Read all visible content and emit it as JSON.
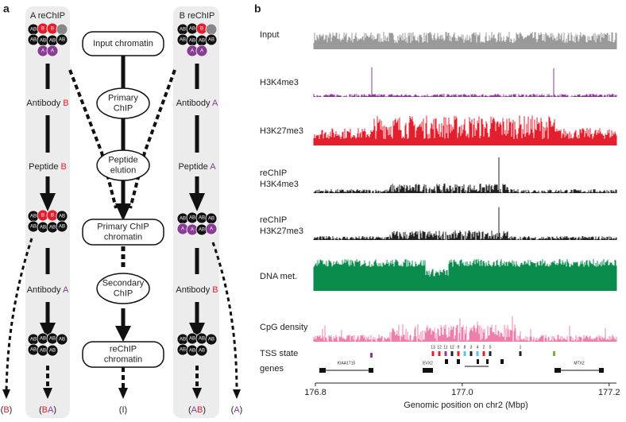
{
  "panel_a": {
    "label": "a",
    "columns": [
      {
        "title": "A reChIP"
      },
      {
        "title": "B reChIP"
      }
    ],
    "center_nodes": [
      {
        "lines": [
          "Input chromatin"
        ]
      },
      {
        "lines": [
          "Primary",
          "ChIP"
        ]
      },
      {
        "lines": [
          "Peptide",
          "elution"
        ]
      },
      {
        "lines": [
          "Primary ChIP",
          "chromatin"
        ]
      },
      {
        "lines": [
          "Secondary",
          "ChIP"
        ]
      },
      {
        "lines": [
          "reChIP",
          "chromatin"
        ]
      }
    ],
    "left_steps": [
      {
        "parts": [
          {
            "text": "Antibody "
          },
          {
            "text": "B",
            "color": "#e31e2d"
          }
        ]
      },
      {
        "parts": [
          {
            "text": "Peptide "
          },
          {
            "text": "B",
            "color": "#e31e2d"
          }
        ]
      },
      {
        "parts": [
          {
            "text": "Antibody "
          },
          {
            "text": "A",
            "color": "#8a3b96"
          }
        ]
      }
    ],
    "right_steps": [
      {
        "parts": [
          {
            "text": "Antibody "
          },
          {
            "text": "A",
            "color": "#8a3b96"
          }
        ]
      },
      {
        "parts": [
          {
            "text": "Peptide "
          },
          {
            "text": "A",
            "color": "#8a3b96"
          }
        ]
      },
      {
        "parts": [
          {
            "text": "Antibody "
          },
          {
            "text": "B",
            "color": "#e31e2d"
          }
        ]
      }
    ],
    "clusters": [
      {
        "beads": [
          {
            "label": "AB"
          },
          {
            "label": "B",
            "color": "#e31e2d"
          },
          {
            "label": "B",
            "color": "#e31e2d"
          },
          {
            "color": "#888888"
          },
          {
            "label": "AB"
          },
          {
            "label": "AB"
          },
          {
            "label": "AB"
          },
          {
            "label": "AB"
          },
          {
            "label": "A",
            "color": "#8a3b96"
          },
          {
            "label": "A",
            "color": "#8a3b96"
          }
        ]
      },
      {
        "beads": [
          {
            "label": "AB"
          },
          {
            "label": "B",
            "color": "#e31e2d"
          },
          {
            "label": "B",
            "color": "#e31e2d"
          },
          {
            "label": "AB"
          },
          {
            "label": "AB"
          },
          {
            "label": "AB"
          },
          {
            "label": "AB"
          },
          {
            "label": "AB"
          }
        ]
      },
      {
        "beads": [
          {
            "label": "AB"
          },
          {
            "label": "AB"
          },
          {
            "label": "AB"
          },
          {
            "label": "AB"
          },
          {
            "label": "AB"
          },
          {
            "label": "AB"
          },
          {
            "label": "AB"
          }
        ]
      },
      {
        "beads": [
          {
            "label": "AB"
          },
          {
            "label": "AB"
          },
          {
            "label": "B",
            "color": "#e31e2d"
          },
          {
            "color": "#888888"
          },
          {
            "label": "AB"
          },
          {
            "label": "AB"
          },
          {
            "label": "AB"
          },
          {
            "label": "AB"
          },
          {
            "label": "A",
            "color": "#8a3b96"
          },
          {
            "label": "A",
            "color": "#8a3b96"
          }
        ]
      },
      {
        "beads": [
          {
            "label": "AB"
          },
          {
            "label": "AB"
          },
          {
            "label": "AB"
          },
          {
            "label": "AB"
          },
          {
            "label": "A",
            "color": "#8a3b96"
          },
          {
            "label": "A",
            "color": "#8a3b96"
          },
          {
            "label": "AB"
          },
          {
            "label": "A",
            "color": "#8a3b96"
          }
        ]
      },
      {
        "beads": [
          {
            "label": "AB"
          },
          {
            "label": "AB"
          },
          {
            "label": "AB"
          },
          {
            "label": "AB"
          },
          {
            "label": "AB"
          },
          {
            "label": "AB"
          },
          {
            "label": "AB"
          }
        ]
      }
    ],
    "outcomes": [
      {
        "parts": [
          {
            "text": "("
          },
          {
            "text": "B",
            "color": "#e31e2d"
          },
          {
            "text": ")"
          }
        ]
      },
      {
        "parts": [
          {
            "text": "("
          },
          {
            "text": "B",
            "color": "#e31e2d"
          },
          {
            "text": "A",
            "color": "#8a3b96"
          },
          {
            "text": ")"
          }
        ]
      },
      {
        "parts": [
          {
            "text": "(I)"
          }
        ]
      },
      {
        "parts": [
          {
            "text": "("
          },
          {
            "text": "A",
            "color": "#8a3b96"
          },
          {
            "text": "B",
            "color": "#e31e2d"
          },
          {
            "text": ")"
          }
        ]
      },
      {
        "parts": [
          {
            "text": "("
          },
          {
            "text": "A",
            "color": "#8a3b96"
          },
          {
            "text": ")"
          }
        ]
      }
    ]
  },
  "panel_b": {
    "label": "b",
    "tracks": [
      {
        "lines": [
          "Input"
        ],
        "color": "#999999"
      },
      {
        "lines": [
          "H3K4me3"
        ],
        "color": "#8a3b96"
      },
      {
        "lines": [
          "H3K27me3"
        ],
        "color": "#e31e2d"
      },
      {
        "lines": [
          "reChIP",
          "H3K4me3"
        ],
        "color": "#222222"
      },
      {
        "lines": [
          "reChIP",
          "H3K27me3"
        ],
        "color": "#222222"
      },
      {
        "lines": [
          "DNA met."
        ],
        "color": "#0a8c4c"
      },
      {
        "lines": [
          "CpG density"
        ],
        "color": "#ec80ad"
      }
    ],
    "tss_label": "TSS state",
    "tss_states": [
      "13",
      "12",
      "11",
      "12",
      "9",
      "8",
      "3",
      "4",
      "2",
      "5",
      "1"
    ],
    "genes_label": "genes",
    "genes": [
      "KIAA1715",
      "EVX2",
      "MTX2"
    ],
    "xlabel": "Genomic position on chr2 (Mbp)",
    "xlim": [
      176.8,
      177.21
    ],
    "xticks": [
      176.8,
      {
        "value": 177,
        "label": "177.0"
      },
      177.2
    ]
  }
}
